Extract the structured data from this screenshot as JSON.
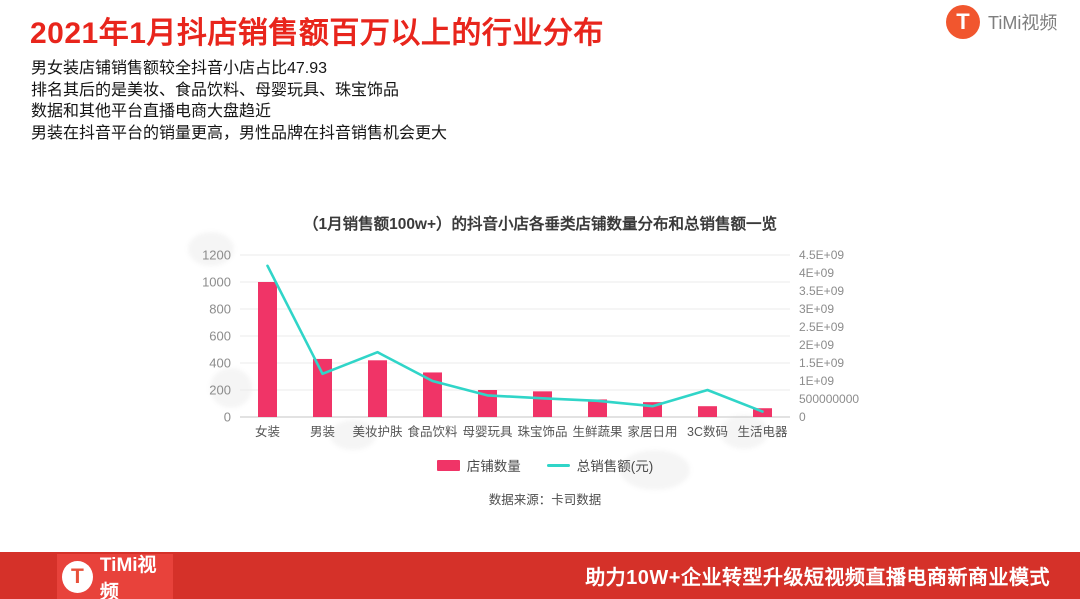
{
  "header": {
    "title": "2021年1月抖店销售额百万以上的行业分布",
    "bullets": [
      "男女装店铺销售额较全抖音小店占比47.93",
      "排名其后的是美妆、食品饮料、母婴玩具、珠宝饰品",
      "数据和其他平台直播电商大盘趋近",
      "男装在抖音平台的销量更高，男性品牌在抖音销售机会更大"
    ],
    "brand": {
      "name": "TiMi视频",
      "letter": "T"
    }
  },
  "chart_data": {
    "type": "bar+line",
    "title": "（1月销售额100w+）的抖音小店各垂类店铺数量分布和总销售额一览",
    "categories": [
      "女装",
      "男装",
      "美妆护肤",
      "食品饮料",
      "母婴玩具",
      "珠宝饰品",
      "生鲜蔬果",
      "家居日用",
      "3C数码",
      "生活电器"
    ],
    "series": [
      {
        "name": "店铺数量",
        "type": "bar",
        "axis": "left",
        "color": "#f03467",
        "values": [
          1000,
          430,
          420,
          330,
          200,
          190,
          130,
          110,
          80,
          65
        ]
      },
      {
        "name": "总销售额(元)",
        "type": "line",
        "axis": "right",
        "color": "#30d5c8",
        "values": [
          4200000000,
          1200000000,
          1800000000,
          1000000000,
          600000000,
          520000000,
          450000000,
          300000000,
          750000000,
          150000000
        ]
      }
    ],
    "left_axis": {
      "min": 0,
      "max": 1200,
      "step": 200,
      "ticks": [
        "1200",
        "1000",
        "800",
        "600",
        "400",
        "200",
        "0"
      ]
    },
    "right_axis": {
      "min": 0,
      "max": 4500000000,
      "step": 500000000,
      "ticks": [
        "4.5E+09",
        "4E+09",
        "3.5E+09",
        "3E+09",
        "2.5E+09",
        "2E+09",
        "1.5E+09",
        "1E+09",
        "500000000",
        "0"
      ]
    },
    "grid": true,
    "legend_position": "bottom",
    "source": "数据来源：卡司数据"
  },
  "footer": {
    "brand": {
      "name": "TiMi视频",
      "letter": "T"
    },
    "tagline": "助力10W+企业转型升级短视频直播电商新商业模式"
  },
  "colors": {
    "title_red": "#e8251c",
    "bar_pink": "#f03467",
    "line_teal": "#30d5c8",
    "footer_red": "#d53129",
    "logo_orange": "#f1562e"
  }
}
